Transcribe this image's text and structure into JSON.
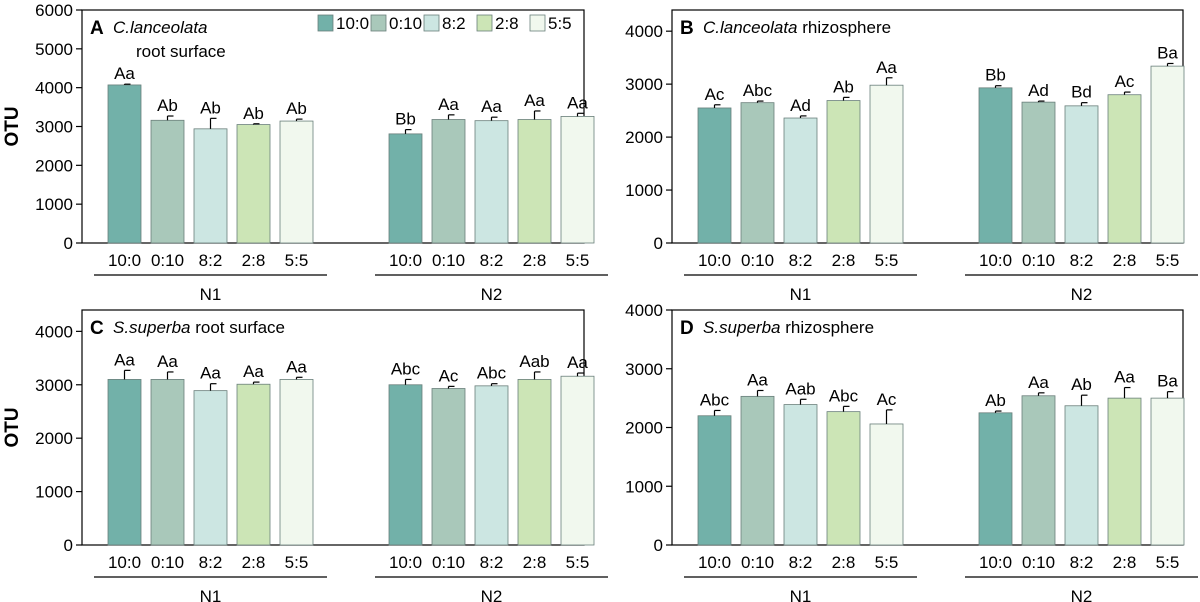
{
  "colors": [
    "#72b1a9",
    "#a9c8ba",
    "#cce6e2",
    "#cce5b6",
    "#f1f8ee"
  ],
  "legend": [
    "10:0",
    "0:10",
    "8:2",
    "2:8",
    "5:5"
  ],
  "chart_data": [
    {
      "type": "bar",
      "panel_letter": "A",
      "title_italic": "C.lanceolata",
      "title_rest": "",
      "title_line2": "root surface",
      "ylabel": "OTU",
      "ylim": [
        0,
        6000
      ],
      "yticks": [
        "0",
        "1000",
        "2000",
        "3000",
        "4000",
        "5000",
        "6000"
      ],
      "ytick_values": [
        0,
        1000,
        2000,
        3000,
        4000,
        5000,
        6000
      ],
      "categories": [
        "10:0",
        "0:10",
        "8:2",
        "2:8",
        "5:5"
      ],
      "groups": [
        {
          "name": "N1",
          "values": [
            4070,
            3160,
            2940,
            3050,
            3140
          ],
          "errors": [
            20,
            110,
            270,
            20,
            50
          ],
          "letters": [
            "Aa",
            "Ab",
            "Ab",
            "Ab",
            "Ab"
          ]
        },
        {
          "name": "N2",
          "values": [
            2810,
            3180,
            3150,
            3180,
            3260
          ],
          "errors": [
            110,
            120,
            90,
            220,
            80
          ],
          "letters": [
            "Bb",
            "Aa",
            "Aa",
            "Aa",
            "Aa"
          ]
        }
      ]
    },
    {
      "type": "bar",
      "panel_letter": "B",
      "title_italic": "C.lanceolata",
      "title_rest": " rhizosphere",
      "title_line2": "",
      "ylabel": "",
      "ylim": [
        0,
        4400
      ],
      "yticks": [
        "0",
        "1000",
        "2000",
        "3000",
        "4000"
      ],
      "ytick_values": [
        0,
        1000,
        2000,
        3000,
        4000
      ],
      "categories": [
        "10:0",
        "0:10",
        "8:2",
        "2:8",
        "5:5"
      ],
      "groups": [
        {
          "name": "N1",
          "values": [
            2550,
            2650,
            2360,
            2690,
            2980
          ],
          "errors": [
            60,
            30,
            40,
            60,
            140
          ],
          "letters": [
            "Ac",
            "Abc",
            "Ad",
            "Ab",
            "Aa"
          ]
        },
        {
          "name": "N2",
          "values": [
            2930,
            2660,
            2590,
            2800,
            3340
          ],
          "errors": [
            40,
            20,
            60,
            50,
            50
          ],
          "letters": [
            "Bb",
            "Ad",
            "Bd",
            "Ac",
            "Ba"
          ]
        }
      ]
    },
    {
      "type": "bar",
      "panel_letter": "C",
      "title_italic": "S.superba",
      "title_rest": " root surface",
      "title_line2": "",
      "ylabel": "OTU",
      "ylim": [
        0,
        4400
      ],
      "yticks": [
        "0",
        "1000",
        "2000",
        "3000",
        "4000"
      ],
      "ytick_values": [
        0,
        1000,
        2000,
        3000,
        4000
      ],
      "categories": [
        "10:0",
        "0:10",
        "8:2",
        "2:8",
        "5:5"
      ],
      "groups": [
        {
          "name": "N1",
          "values": [
            3100,
            3100,
            2890,
            3010,
            3100
          ],
          "errors": [
            170,
            140,
            130,
            40,
            40
          ],
          "letters": [
            "Aa",
            "Aa",
            "Aa",
            "Aa",
            "Aa"
          ]
        },
        {
          "name": "N2",
          "values": [
            3000,
            2930,
            2980,
            3100,
            3160
          ],
          "errors": [
            100,
            40,
            40,
            140,
            60
          ],
          "letters": [
            "Abc",
            "Ac",
            "Abc",
            "Aab",
            "Aa"
          ]
        }
      ]
    },
    {
      "type": "bar",
      "panel_letter": "D",
      "title_italic": "S.superba",
      "title_rest": " rhizosphere",
      "title_line2": "",
      "ylabel": "",
      "ylim": [
        0,
        4000
      ],
      "yticks": [
        "0",
        "1000",
        "2000",
        "3000",
        "4000"
      ],
      "ytick_values": [
        0,
        1000,
        2000,
        3000,
        4000
      ],
      "categories": [
        "10:0",
        "0:10",
        "8:2",
        "2:8",
        "5:5"
      ],
      "groups": [
        {
          "name": "N1",
          "values": [
            2200,
            2530,
            2390,
            2270,
            2060
          ],
          "errors": [
            90,
            100,
            90,
            90,
            240
          ],
          "letters": [
            "Abc",
            "Aa",
            "Aab",
            "Abc",
            "Ac"
          ]
        },
        {
          "name": "N2",
          "values": [
            2250,
            2540,
            2370,
            2500,
            2500
          ],
          "errors": [
            30,
            50,
            180,
            180,
            110
          ],
          "letters": [
            "Ab",
            "Aa",
            "Ab",
            "Aa",
            "Ba"
          ]
        }
      ]
    }
  ]
}
